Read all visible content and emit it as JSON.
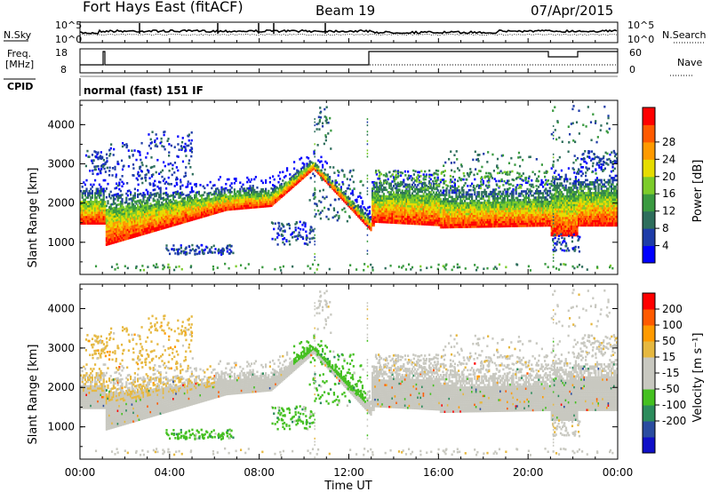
{
  "header": {
    "title": "Fort Hays East (fitACF)",
    "beam": "Beam 19",
    "date": "07/Apr/2015"
  },
  "labels": {
    "nsky": "N.Sky",
    "nsearch": "N.Search",
    "freq_line1": "Freq.",
    "freq_line2": "[MHz]",
    "nave": "Nave",
    "cpid": "CPID",
    "cpid_value": "normal (fast) 151 IF"
  },
  "noise_ticks": {
    "top": "10^5",
    "bottom": "10^0"
  },
  "freq_ticks": {
    "left_top": "18",
    "left_bottom": "8",
    "right_top": "60",
    "right_bottom": "0"
  },
  "colors": {
    "power_scale": [
      "#0000ff",
      "#1e3ca8",
      "#2e6e5c",
      "#3a9a40",
      "#7ccc2a",
      "#e6dc00",
      "#ff9a00",
      "#ff5a00",
      "#ff0000"
    ],
    "velocity_scale": [
      "#ff0000",
      "#ff5a00",
      "#ff9a00",
      "#e6b840",
      "#c8c8c0",
      "#c8c8c0",
      "#44c020",
      "#2c8c5c",
      "#2a4ca0",
      "#1010c8"
    ]
  },
  "chart_data": [
    {
      "type": "heatmap",
      "name": "power",
      "xlabel": "",
      "ylabel": "Slant Range [km]",
      "y_ticks": [
        1000,
        2000,
        3000,
        4000
      ],
      "x_range": [
        "00:00",
        "24:00"
      ],
      "colorbar": {
        "label": "Power [dB]",
        "ticks": [
          4,
          8,
          12,
          16,
          20,
          24,
          28
        ]
      }
    },
    {
      "type": "heatmap",
      "name": "velocity",
      "xlabel": "Time UT",
      "ylabel": "Slant Range [km]",
      "y_ticks": [
        1000,
        2000,
        3000,
        4000
      ],
      "x_ticks": [
        "00:00",
        "04:00",
        "08:00",
        "12:00",
        "16:00",
        "20:00",
        "00:00"
      ],
      "colorbar": {
        "label": "Velocity [m s⁻¹]",
        "ticks": [
          200,
          100,
          50,
          15,
          -15,
          -50,
          -100,
          -200
        ]
      }
    }
  ]
}
